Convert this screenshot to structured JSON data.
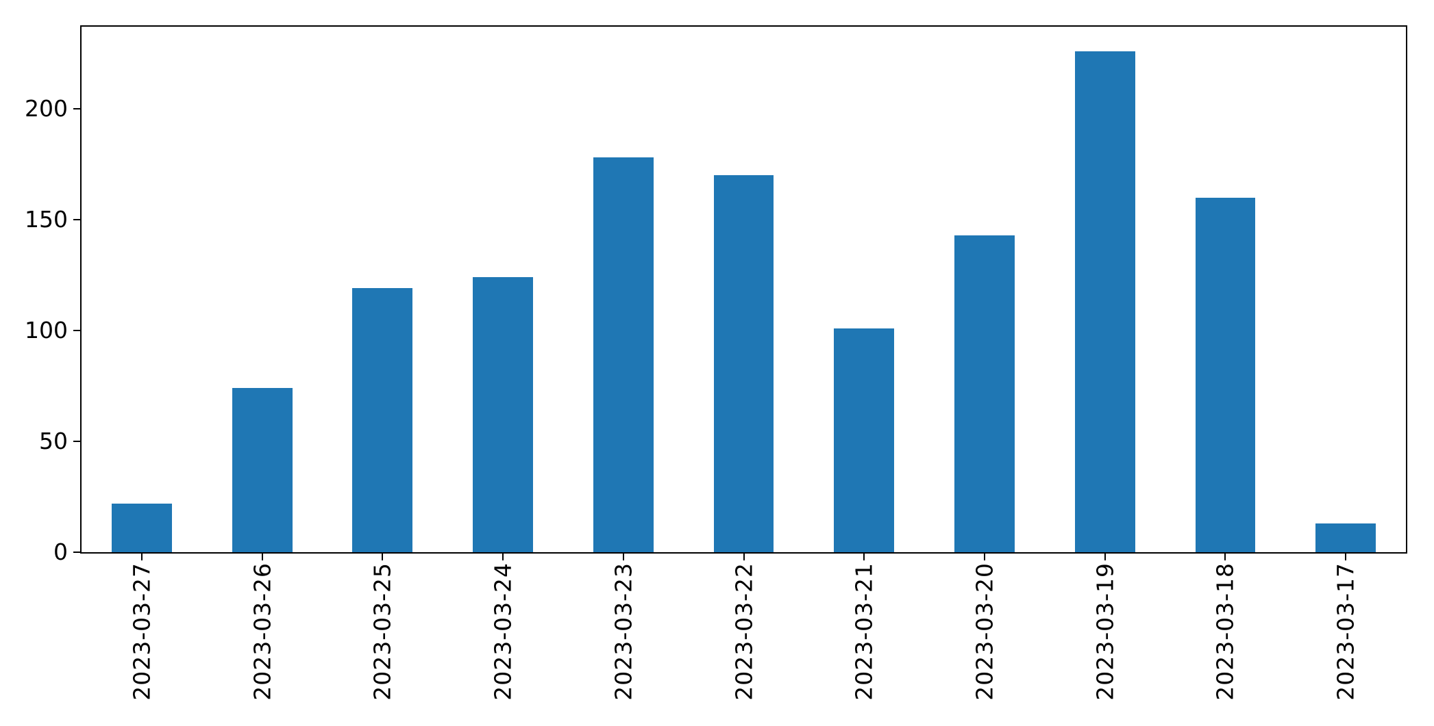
{
  "chart_data": {
    "type": "bar",
    "categories": [
      "2023-03-27",
      "2023-03-26",
      "2023-03-25",
      "2023-03-24",
      "2023-03-23",
      "2023-03-22",
      "2023-03-21",
      "2023-03-20",
      "2023-03-19",
      "2023-03-18",
      "2023-03-17"
    ],
    "values": [
      22,
      74,
      119,
      124,
      178,
      170,
      101,
      143,
      226,
      160,
      13
    ],
    "title": "",
    "xlabel": "",
    "ylabel": "",
    "ylim": [
      0,
      237
    ],
    "yticks": [
      0,
      50,
      100,
      150,
      200
    ],
    "bar_color": "#1f77b4",
    "bar_width_frac": 0.5,
    "grid": false,
    "legend": null,
    "background_color": "#ffffff",
    "spine_color": "#000000"
  }
}
